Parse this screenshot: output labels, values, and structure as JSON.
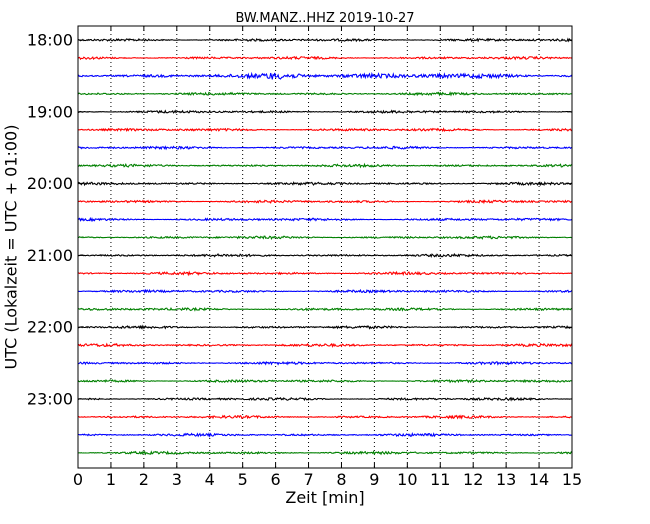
{
  "chart_data": {
    "type": "line",
    "title": "BW.MANZ..HHZ 2019-10-27",
    "xlabel": "Zeit  [min]",
    "ylabel": "UTC (Lokalzeit = UTC + 01:00)",
    "xlim": [
      0,
      15
    ],
    "x_ticks": [
      "0",
      "1",
      "2",
      "3",
      "4",
      "5",
      "6",
      "7",
      "8",
      "9",
      "10",
      "11",
      "12",
      "13",
      "14",
      "15"
    ],
    "y_tick_labels": [
      "18:00",
      "19:00",
      "20:00",
      "21:00",
      "22:00",
      "23:00"
    ],
    "minutes_per_trace": 15,
    "trace_colors": [
      "#000000",
      "#ff0000",
      "#0000ff",
      "#008000"
    ],
    "grid": "vertical dotted lines at each minute",
    "traces": [
      {
        "start": "18:00",
        "color": "#000000"
      },
      {
        "start": "18:15",
        "color": "#ff0000"
      },
      {
        "start": "18:30",
        "color": "#0000ff"
      },
      {
        "start": "18:45",
        "color": "#008000"
      },
      {
        "start": "19:00",
        "color": "#000000"
      },
      {
        "start": "19:15",
        "color": "#ff0000"
      },
      {
        "start": "19:30",
        "color": "#0000ff"
      },
      {
        "start": "19:45",
        "color": "#008000"
      },
      {
        "start": "20:00",
        "color": "#000000"
      },
      {
        "start": "20:15",
        "color": "#ff0000"
      },
      {
        "start": "20:30",
        "color": "#0000ff"
      },
      {
        "start": "20:45",
        "color": "#008000"
      },
      {
        "start": "21:00",
        "color": "#000000"
      },
      {
        "start": "21:15",
        "color": "#ff0000"
      },
      {
        "start": "21:30",
        "color": "#0000ff"
      },
      {
        "start": "21:45",
        "color": "#008000"
      },
      {
        "start": "22:00",
        "color": "#000000"
      },
      {
        "start": "22:15",
        "color": "#ff0000"
      },
      {
        "start": "22:30",
        "color": "#0000ff"
      },
      {
        "start": "22:45",
        "color": "#008000"
      },
      {
        "start": "23:00",
        "color": "#000000"
      },
      {
        "start": "23:15",
        "color": "#ff0000"
      },
      {
        "start": "23:30",
        "color": "#0000ff"
      },
      {
        "start": "23:45",
        "color": "#008000"
      }
    ]
  }
}
